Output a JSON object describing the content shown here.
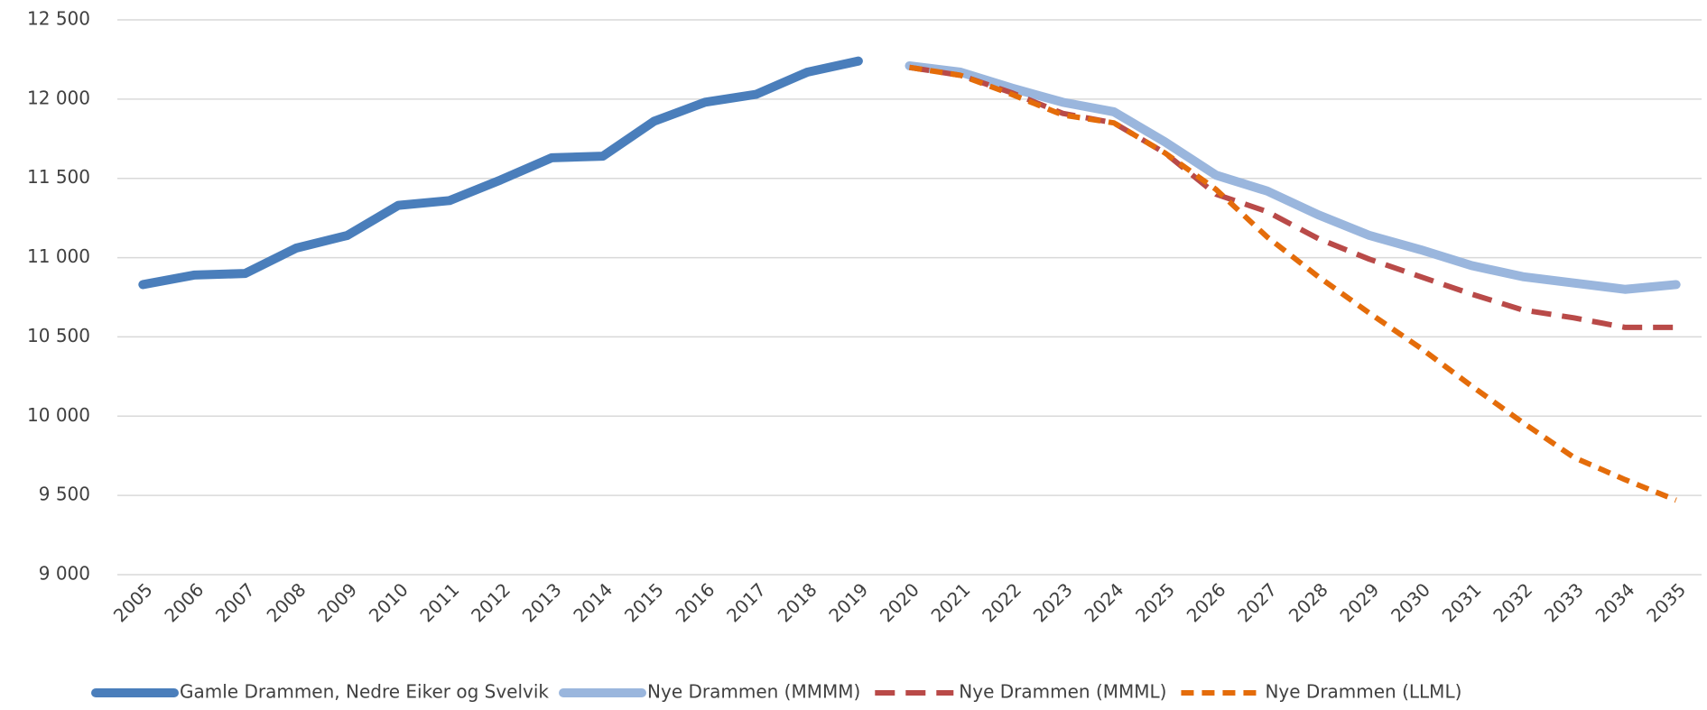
{
  "chart_data": {
    "type": "line",
    "categories": [
      "2005",
      "2006",
      "2007",
      "2008",
      "2009",
      "2010",
      "2011",
      "2012",
      "2013",
      "2014",
      "2015",
      "2016",
      "2017",
      "2018",
      "2019",
      "2020",
      "2021",
      "2022",
      "2023",
      "2024",
      "2025",
      "2026",
      "2027",
      "2028",
      "2029",
      "2030",
      "2031",
      "2032",
      "2033",
      "2034",
      "2035"
    ],
    "series": [
      {
        "name": "Gamle Drammen, Nedre Eiker og Svelvik",
        "color": "#4a7ebb",
        "line_style": "solid",
        "values": [
          10830,
          10890,
          10900,
          11060,
          11140,
          11330,
          11360,
          11490,
          11630,
          11640,
          11860,
          11980,
          12030,
          12170,
          12240,
          null,
          null,
          null,
          null,
          null,
          null,
          null,
          null,
          null,
          null,
          null,
          null,
          null,
          null,
          null,
          null
        ]
      },
      {
        "name": "Nye Drammen (MMMM)",
        "color": "#9ab6dd",
        "line_style": "solid",
        "values": [
          null,
          null,
          null,
          null,
          null,
          null,
          null,
          null,
          null,
          null,
          null,
          null,
          null,
          null,
          null,
          12210,
          12170,
          12070,
          11980,
          11920,
          11730,
          11520,
          11420,
          11270,
          11140,
          11050,
          10950,
          10880,
          10840,
          10800,
          10830
        ]
      },
      {
        "name": "Nye Drammen (MMML)",
        "color": "#b94a48",
        "line_style": "dashed",
        "values": [
          null,
          null,
          null,
          null,
          null,
          null,
          null,
          null,
          null,
          null,
          null,
          null,
          null,
          null,
          null,
          12200,
          12150,
          12040,
          11910,
          11850,
          11660,
          11400,
          11290,
          11120,
          10990,
          10880,
          10770,
          10670,
          10620,
          10560,
          10560
        ]
      },
      {
        "name": "Nye Drammen (LLML)",
        "color": "#e46c0a",
        "line_style": "dashed",
        "values": [
          null,
          null,
          null,
          null,
          null,
          null,
          null,
          null,
          null,
          null,
          null,
          null,
          null,
          null,
          null,
          12200,
          12150,
          12030,
          11900,
          11850,
          11660,
          11430,
          11130,
          10880,
          10650,
          10430,
          10190,
          9960,
          9740,
          9600,
          9470
        ]
      }
    ],
    "ylim": [
      9000,
      12500
    ],
    "yticks": [
      {
        "value": 9000,
        "label": "9 000"
      },
      {
        "value": 9500,
        "label": "9 500"
      },
      {
        "value": 10000,
        "label": "10 000"
      },
      {
        "value": 10500,
        "label": "10 500"
      },
      {
        "value": 11000,
        "label": "11 000"
      },
      {
        "value": 11500,
        "label": "11 500"
      },
      {
        "value": 12000,
        "label": "12 000"
      },
      {
        "value": 12500,
        "label": "12 500"
      }
    ],
    "grid": true,
    "legend": "bottom"
  }
}
